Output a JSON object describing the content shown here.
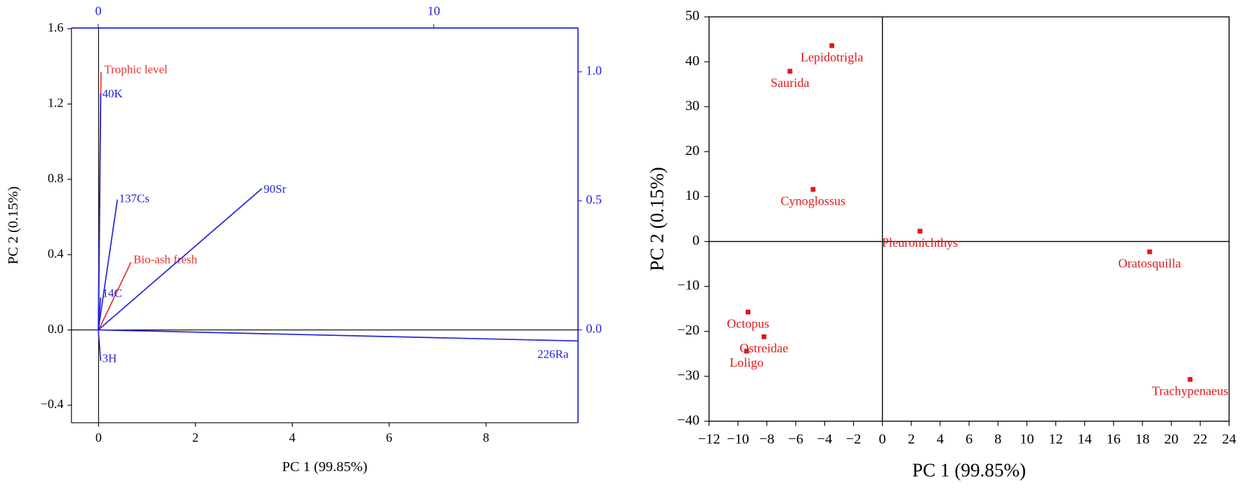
{
  "chart_data": [
    {
      "type": "biplot",
      "xlabel": "PC 1 (99.85%)",
      "ylabel": "PC 2 (0.15%)",
      "xlim": [
        -0.56,
        9.9
      ],
      "xticks": [
        0,
        2,
        4,
        6,
        8
      ],
      "ylim": [
        -0.493,
        1.604
      ],
      "yticks": [
        {
          "value": -0.4,
          "label": "−0.4"
        },
        {
          "value": 0,
          "label": "0.0"
        },
        0.4,
        0.8,
        1.2,
        1.6
      ],
      "x2lim": [
        -0.8,
        14.3
      ],
      "x2ticks": [
        0,
        10
      ],
      "y2lim": [
        -0.36,
        1.17
      ],
      "y2ticks": [
        {
          "value": 0,
          "label": "0.0"
        },
        0.5,
        {
          "value": 1,
          "label": "1.0"
        }
      ],
      "zero_lines": true,
      "vector_groups": [
        {
          "color": "#e8312c",
          "axes": "primary",
          "vectors": [
            {
              "label": "Trophic level",
              "x": 0.05,
              "y": 1.37
            },
            {
              "label": "Bio-ash fresh",
              "x": 0.67,
              "y": 0.36
            }
          ]
        },
        {
          "color": "#2424d8",
          "axes": "secondary",
          "vectors": [
            {
              "label": "40K",
              "x": 0.07,
              "y": 0.917
            },
            {
              "label": "137Cs",
              "x": 0.57,
              "y": 0.505
            },
            {
              "label": "90Sr",
              "x": 4.88,
              "y": 0.548
            },
            {
              "label": "14C",
              "x": 0.07,
              "y": 0.126
            },
            {
              "label": "3H",
              "x": 0.07,
              "y": -0.12
            },
            {
              "label": "226Ra",
              "x": 14.3,
              "y": -0.043
            }
          ]
        }
      ]
    },
    {
      "type": "scatter",
      "xlabel": "PC 1 (99.85%)",
      "ylabel": "PC 2 (0.15%)",
      "xlim": [
        -12,
        24
      ],
      "xticks": [
        {
          "value": -12,
          "label": "−12"
        },
        {
          "value": -10,
          "label": "−10"
        },
        {
          "value": -8,
          "label": "−8"
        },
        {
          "value": -6,
          "label": "−6"
        },
        {
          "value": -4,
          "label": "−4"
        },
        {
          "value": -2,
          "label": "−2"
        },
        0,
        2,
        4,
        6,
        8,
        10,
        12,
        14,
        16,
        18,
        20,
        22,
        24
      ],
      "ylim": [
        -40,
        50
      ],
      "yticks": [
        {
          "value": -40,
          "label": "−40"
        },
        {
          "value": -30,
          "label": "−30"
        },
        {
          "value": -20,
          "label": "−20"
        },
        {
          "value": -10,
          "label": "−10"
        },
        0,
        10,
        20,
        30,
        40,
        50
      ],
      "zero_lines": true,
      "color": "#e01818",
      "labels": [
        "Lepidotrigla",
        "Saurida",
        "Cynoglossus",
        "Pleuronichthys",
        "Oratosquilla",
        "Octopus",
        "Ostreidae",
        "Loligo",
        "Trachypenaeus"
      ],
      "x": [
        -3.5,
        -6.4,
        -4.8,
        2.6,
        18.5,
        -9.3,
        -8.2,
        -9.4,
        21.3
      ],
      "values": [
        43.6,
        37.9,
        11.6,
        2.3,
        -2.3,
        -15.7,
        -21.2,
        -24.4,
        -30.7
      ]
    }
  ]
}
